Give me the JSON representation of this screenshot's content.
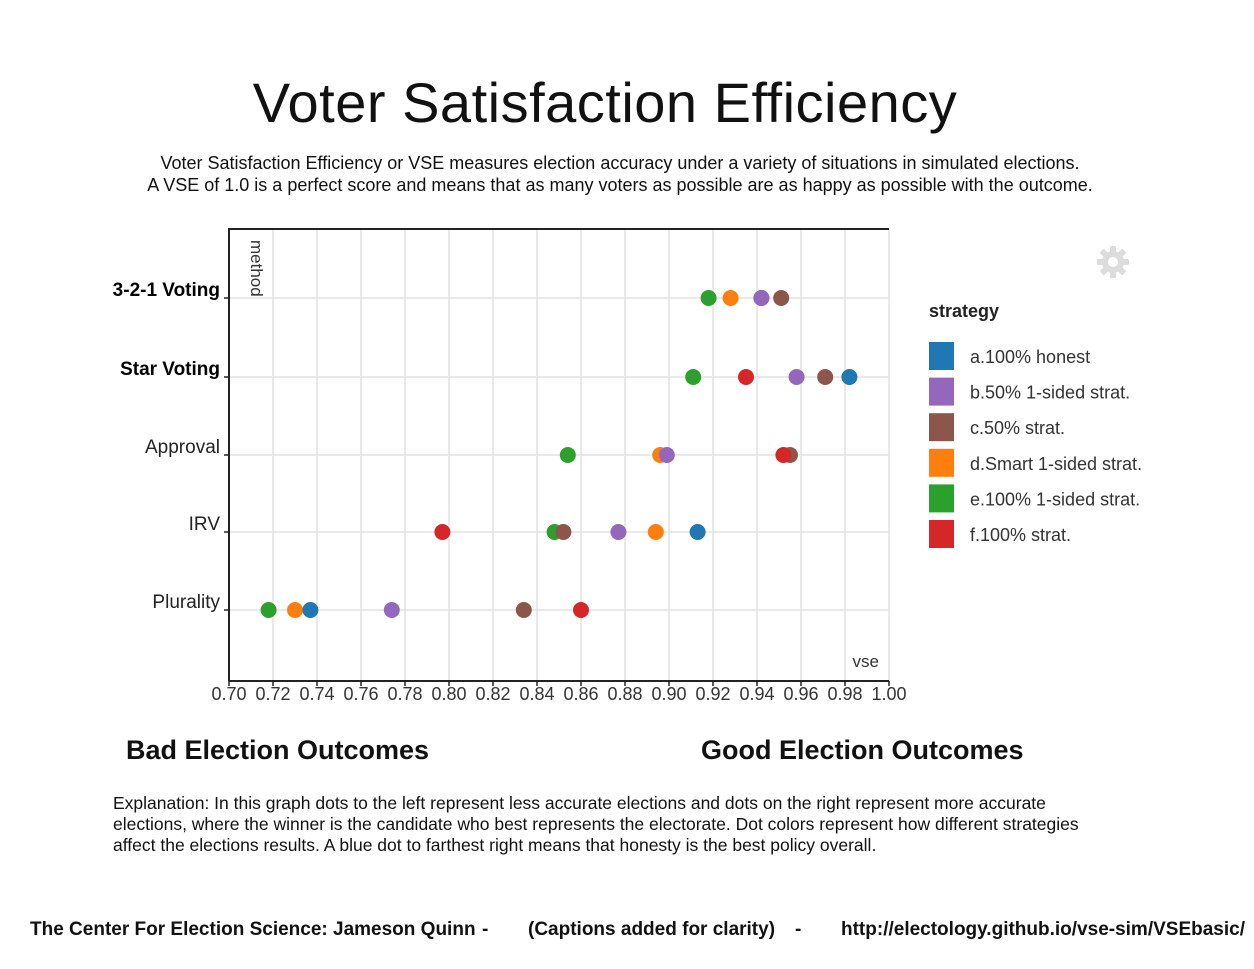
{
  "title": "Voter Satisfaction Efficiency",
  "subtitle_lines": [
    "Voter Satisfaction Efficiency or VSE measures election accuracy under a variety of situations in simulated elections.",
    "A VSE of 1.0 is a perfect score and means that as many voters as possible are as happy as possible with the outcome."
  ],
  "captions": {
    "bad": "Bad Election Outcomes",
    "good": "Good Election Outcomes"
  },
  "explanation": "Explanation: In this graph dots to the left represent less accurate elections and dots on the right represent more accurate elections, where the winner is the candidate who best represents the electorate. Dot colors represent how different strategies affect the elections results. A blue dot to farthest right means that honesty is the best policy overall.",
  "footer": {
    "credit": "The Center For Election Science: Jameson Quinn",
    "sep": "-",
    "note": "(Captions added for clarity)",
    "url": "http://electology.github.io/vse-sim/VSEbasic/"
  },
  "icons": {
    "settings": "gear-icon"
  },
  "chart_data": {
    "type": "scatter",
    "xlabel": "vse",
    "ylabel": "method",
    "xlim": [
      0.7,
      1.0
    ],
    "xticks": [
      "0.70",
      "0.72",
      "0.74",
      "0.76",
      "0.78",
      "0.80",
      "0.82",
      "0.84",
      "0.86",
      "0.88",
      "0.90",
      "0.92",
      "0.94",
      "0.96",
      "0.98",
      "1.00"
    ],
    "grid": true,
    "legend_title": "strategy",
    "legend_position": "right",
    "categories": [
      "3-2-1 Voting",
      "Star Voting",
      "Approval",
      "IRV",
      "Plurality"
    ],
    "bold_categories": [
      "3-2-1 Voting",
      "Star Voting"
    ],
    "series": [
      {
        "name": "a.100% honest",
        "color": "#1f77b4",
        "values": [
          0.942,
          0.982,
          null,
          0.913,
          0.737
        ]
      },
      {
        "name": "b.50% 1-sided strat.",
        "color": "#9467bd",
        "values": [
          0.942,
          0.958,
          0.899,
          0.877,
          0.774
        ]
      },
      {
        "name": "c.50% strat.",
        "color": "#8c564b",
        "values": [
          0.951,
          0.971,
          0.955,
          0.852,
          0.834
        ]
      },
      {
        "name": "d.Smart 1-sided strat.",
        "color": "#ff7f0e",
        "values": [
          0.928,
          null,
          0.896,
          0.894,
          0.73
        ]
      },
      {
        "name": "e.100% 1-sided strat.",
        "color": "#2ca02c",
        "values": [
          0.918,
          0.911,
          0.854,
          0.848,
          0.718
        ]
      },
      {
        "name": "f.100% strat.",
        "color": "#d62728",
        "values": [
          null,
          0.935,
          0.952,
          0.797,
          0.86
        ]
      }
    ]
  }
}
